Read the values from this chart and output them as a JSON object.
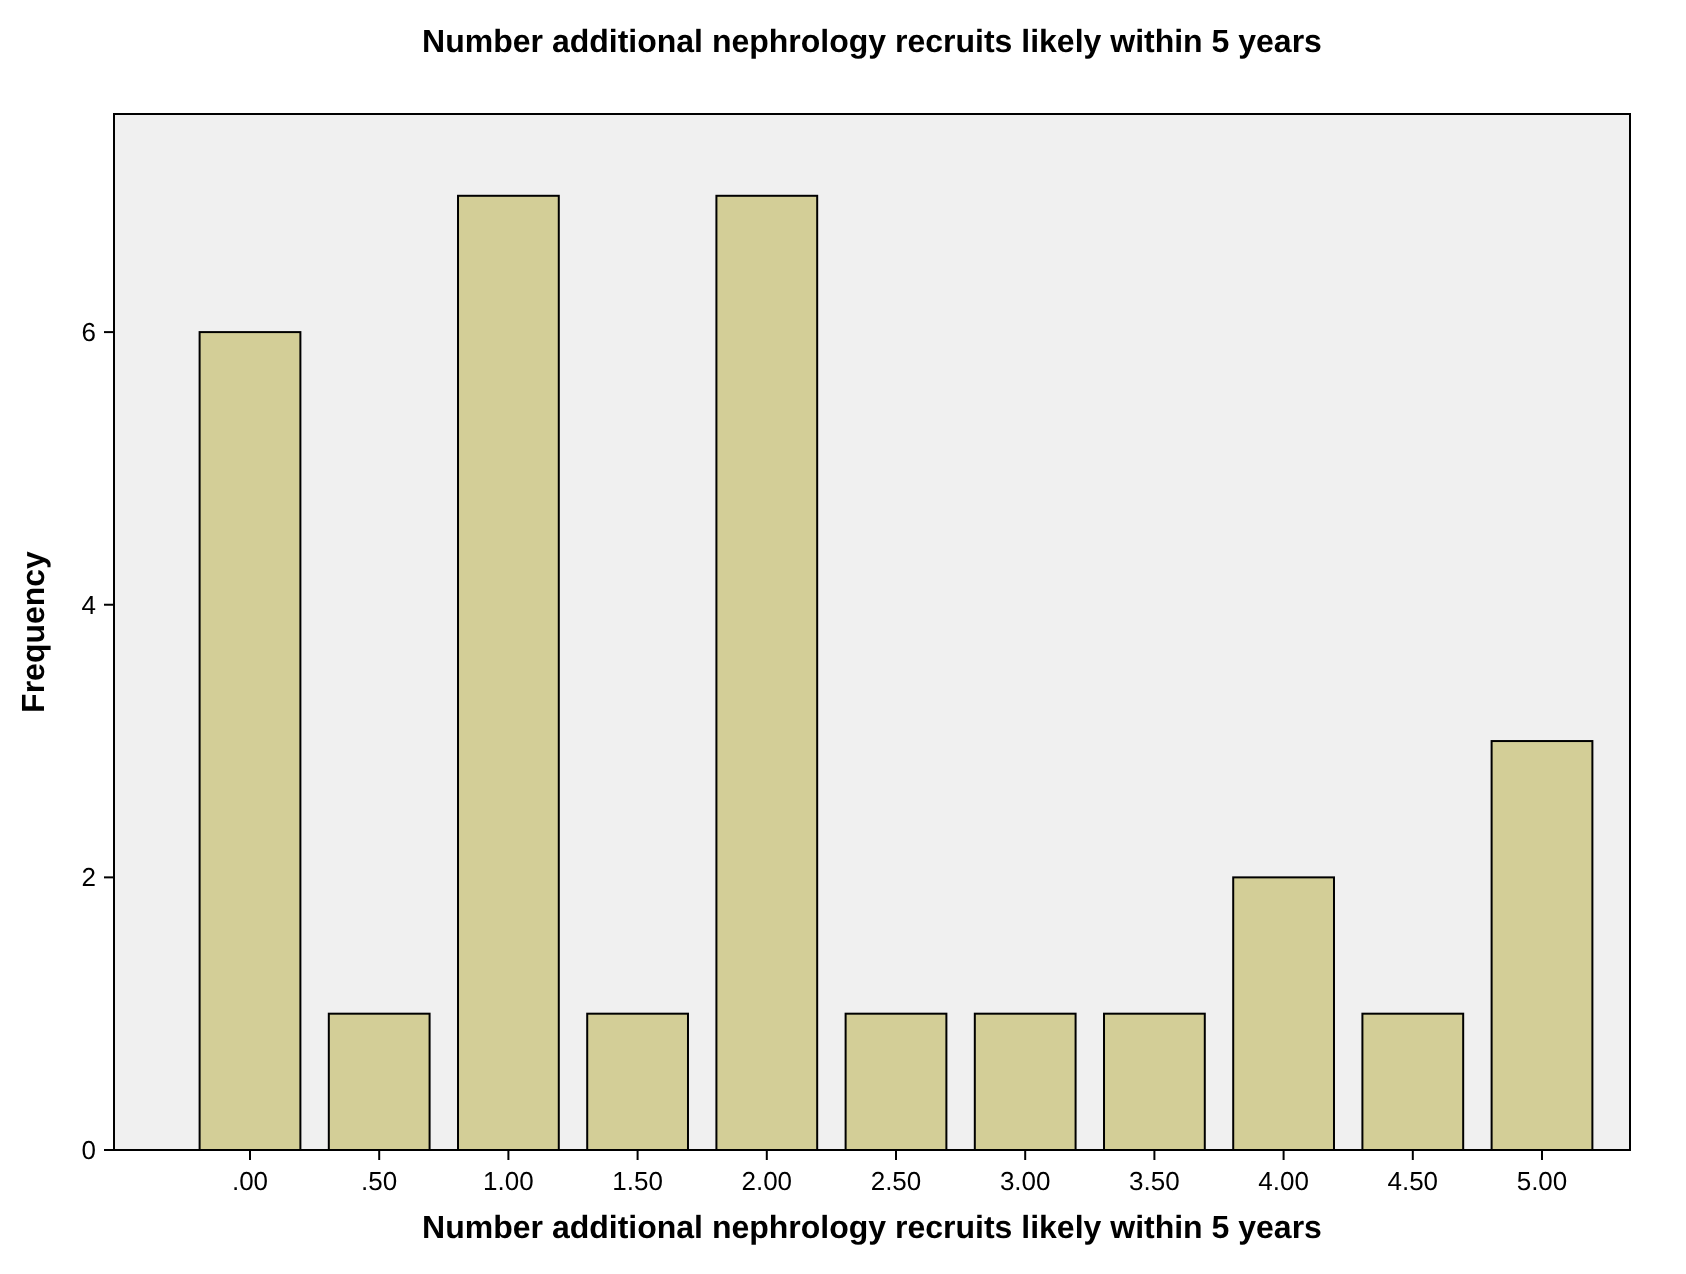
{
  "chart_data": {
    "type": "bar",
    "title": "Number additional nephrology recruits likely within 5 years",
    "xlabel": "Number additional nephrology recruits likely within 5 years",
    "ylabel": "Frequency",
    "categories": [
      ".00",
      ".50",
      "1.00",
      "1.50",
      "2.00",
      "2.50",
      "3.00",
      "3.50",
      "4.00",
      "4.50",
      "5.00"
    ],
    "values": [
      6,
      1,
      7,
      1,
      7,
      1,
      1,
      1,
      2,
      1,
      3
    ],
    "color": "#d3ce97",
    "ylim": [
      0,
      7.6
    ],
    "yticks": [
      0,
      2,
      4,
      6
    ],
    "grid": false
  }
}
